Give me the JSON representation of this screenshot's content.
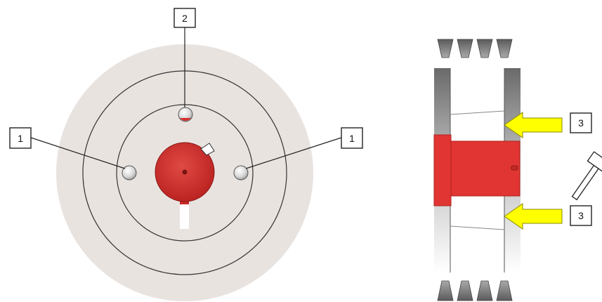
{
  "callouts": {
    "front_left": "1",
    "front_top": "2",
    "front_right": "1",
    "side_upper": "3",
    "side_lower": "3"
  },
  "colors": {
    "disc": "#e9e3e0",
    "hub": "#d8322f",
    "arrow": "#ffff00",
    "groove": "#6f6f6f"
  },
  "icons": [
    "hammer-icon"
  ]
}
